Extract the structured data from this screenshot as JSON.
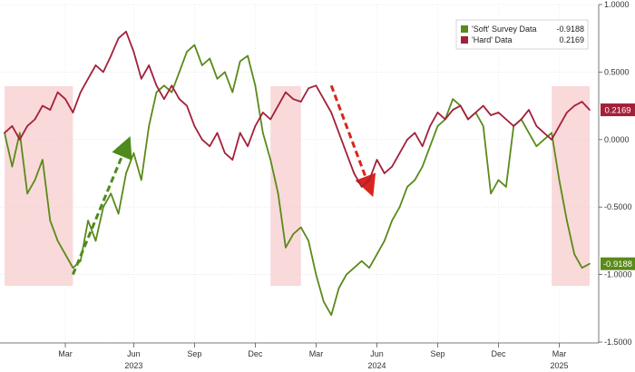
{
  "chart_data": {
    "type": "line",
    "title": "",
    "xlabel": "",
    "ylabel": "",
    "ylim": [
      -1.5,
      1.0
    ],
    "y_ticks": [
      "1.0000",
      "0.5000",
      "0.0000",
      "-0.5000",
      "-1.0000",
      "-1.5000"
    ],
    "y_tick_values": [
      1.0,
      0.5,
      0.0,
      -0.5,
      -1.0,
      -1.5
    ],
    "x_month_ticks": [
      "Mar",
      "Jun",
      "Sep",
      "Dec",
      "Mar",
      "Jun",
      "Sep",
      "Dec",
      "Mar"
    ],
    "x_year_labels": [
      "2023",
      "2024",
      "2025"
    ],
    "grid": true,
    "legend_position": "top-right",
    "colors": {
      "soft": "#5a8a1a",
      "hard": "#a3203a",
      "highlight": "#f8d0d0",
      "arrow_soft": "#4e8a1c",
      "arrow_hard": "#d9251c"
    },
    "series": [
      {
        "name": "'Soft' Survey Data",
        "last_value": "-0.9188",
        "values": [
          [
            0,
            0.05
          ],
          [
            1,
            -0.2
          ],
          [
            2,
            0.05
          ],
          [
            3,
            -0.4
          ],
          [
            4,
            -0.3
          ],
          [
            5,
            -0.15
          ],
          [
            6,
            -0.6
          ],
          [
            7,
            -0.75
          ],
          [
            8,
            -0.85
          ],
          [
            9,
            -0.95
          ],
          [
            10,
            -0.9
          ],
          [
            11,
            -0.6
          ],
          [
            12,
            -0.75
          ],
          [
            13,
            -0.5
          ],
          [
            14,
            -0.4
          ],
          [
            15,
            -0.55
          ],
          [
            16,
            -0.25
          ],
          [
            17,
            -0.1
          ],
          [
            18,
            -0.3
          ],
          [
            19,
            0.1
          ],
          [
            20,
            0.35
          ],
          [
            21,
            0.4
          ],
          [
            22,
            0.35
          ],
          [
            23,
            0.5
          ],
          [
            24,
            0.65
          ],
          [
            25,
            0.7
          ],
          [
            26,
            0.55
          ],
          [
            27,
            0.6
          ],
          [
            28,
            0.45
          ],
          [
            29,
            0.5
          ],
          [
            30,
            0.35
          ],
          [
            31,
            0.58
          ],
          [
            32,
            0.62
          ],
          [
            33,
            0.4
          ],
          [
            34,
            0.05
          ],
          [
            35,
            -0.15
          ],
          [
            36,
            -0.4
          ],
          [
            37,
            -0.8
          ],
          [
            38,
            -0.7
          ],
          [
            39,
            -0.65
          ],
          [
            40,
            -0.75
          ],
          [
            41,
            -1.0
          ],
          [
            42,
            -1.2
          ],
          [
            43,
            -1.3
          ],
          [
            44,
            -1.1
          ],
          [
            45,
            -1.0
          ],
          [
            46,
            -0.95
          ],
          [
            47,
            -0.9
          ],
          [
            48,
            -0.95
          ],
          [
            49,
            -0.85
          ],
          [
            50,
            -0.75
          ],
          [
            51,
            -0.6
          ],
          [
            52,
            -0.5
          ],
          [
            53,
            -0.35
          ],
          [
            54,
            -0.3
          ],
          [
            55,
            -0.2
          ],
          [
            56,
            -0.05
          ],
          [
            57,
            0.1
          ],
          [
            58,
            0.15
          ],
          [
            59,
            0.3
          ],
          [
            60,
            0.25
          ],
          [
            61,
            0.15
          ],
          [
            62,
            0.2
          ],
          [
            63,
            0.1
          ],
          [
            64,
            -0.4
          ],
          [
            65,
            -0.3
          ],
          [
            66,
            -0.35
          ],
          [
            67,
            0.1
          ],
          [
            68,
            0.15
          ],
          [
            69,
            0.05
          ],
          [
            70,
            -0.05
          ],
          [
            71,
            0.0
          ],
          [
            72,
            0.05
          ],
          [
            73,
            -0.3
          ],
          [
            74,
            -0.6
          ],
          [
            75,
            -0.85
          ],
          [
            76,
            -0.95
          ],
          [
            77,
            -0.92
          ]
        ]
      },
      {
        "name": "'Hard' Data",
        "last_value": "0.2169",
        "values": [
          [
            0,
            0.05
          ],
          [
            1,
            0.1
          ],
          [
            2,
            0.0
          ],
          [
            3,
            0.1
          ],
          [
            4,
            0.15
          ],
          [
            5,
            0.25
          ],
          [
            6,
            0.22
          ],
          [
            7,
            0.35
          ],
          [
            8,
            0.3
          ],
          [
            9,
            0.2
          ],
          [
            10,
            0.35
          ],
          [
            11,
            0.45
          ],
          [
            12,
            0.55
          ],
          [
            13,
            0.5
          ],
          [
            14,
            0.62
          ],
          [
            15,
            0.75
          ],
          [
            16,
            0.8
          ],
          [
            17,
            0.65
          ],
          [
            18,
            0.45
          ],
          [
            19,
            0.55
          ],
          [
            20,
            0.4
          ],
          [
            21,
            0.3
          ],
          [
            22,
            0.4
          ],
          [
            23,
            0.3
          ],
          [
            24,
            0.25
          ],
          [
            25,
            0.1
          ],
          [
            26,
            0.0
          ],
          [
            27,
            -0.05
          ],
          [
            28,
            0.05
          ],
          [
            29,
            -0.1
          ],
          [
            30,
            -0.15
          ],
          [
            31,
            0.05
          ],
          [
            32,
            -0.05
          ],
          [
            33,
            0.1
          ],
          [
            34,
            0.2
          ],
          [
            35,
            0.15
          ],
          [
            36,
            0.25
          ],
          [
            37,
            0.35
          ],
          [
            38,
            0.3
          ],
          [
            39,
            0.28
          ],
          [
            40,
            0.38
          ],
          [
            41,
            0.4
          ],
          [
            42,
            0.3
          ],
          [
            43,
            0.2
          ],
          [
            44,
            0.05
          ],
          [
            45,
            -0.1
          ],
          [
            46,
            -0.25
          ],
          [
            47,
            -0.35
          ],
          [
            48,
            -0.3
          ],
          [
            49,
            -0.15
          ],
          [
            50,
            -0.25
          ],
          [
            51,
            -0.2
          ],
          [
            52,
            -0.1
          ],
          [
            53,
            0.0
          ],
          [
            54,
            0.05
          ],
          [
            55,
            -0.05
          ],
          [
            56,
            0.1
          ],
          [
            57,
            0.2
          ],
          [
            58,
            0.15
          ],
          [
            59,
            0.22
          ],
          [
            60,
            0.25
          ],
          [
            61,
            0.15
          ],
          [
            62,
            0.2
          ],
          [
            63,
            0.25
          ],
          [
            64,
            0.18
          ],
          [
            65,
            0.2
          ],
          [
            66,
            0.15
          ],
          [
            67,
            0.1
          ],
          [
            68,
            0.15
          ],
          [
            69,
            0.22
          ],
          [
            70,
            0.1
          ],
          [
            71,
            0.05
          ],
          [
            72,
            0.0
          ],
          [
            73,
            0.1
          ],
          [
            74,
            0.2
          ],
          [
            75,
            0.25
          ],
          [
            76,
            0.28
          ],
          [
            77,
            0.22
          ]
        ]
      }
    ],
    "highlight_ranges": [
      [
        0,
        9
      ],
      [
        35,
        39
      ],
      [
        72,
        77
      ]
    ]
  }
}
